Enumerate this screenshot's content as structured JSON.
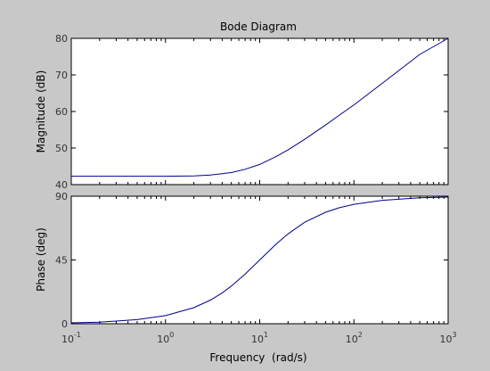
{
  "chart_data": {
    "type": "line",
    "title": "Bode Diagram",
    "xlabel": "Frequency  (rad/s)",
    "x_scale": "log",
    "xlim": [
      0.1,
      1000
    ],
    "x_ticks": [
      {
        "value": 0.1,
        "base": "10",
        "exp": "-1"
      },
      {
        "value": 1,
        "base": "10",
        "exp": "0"
      },
      {
        "value": 10,
        "base": "10",
        "exp": "1"
      },
      {
        "value": 100,
        "base": "10",
        "exp": "2"
      },
      {
        "value": 1000,
        "base": "10",
        "exp": "3"
      }
    ],
    "line_color": "#00008b",
    "grid": false,
    "panels": [
      {
        "name": "magnitude",
        "ylabel": "Magnitude (dB)",
        "ylim": [
          40,
          80
        ],
        "y_ticks": [
          "40",
          "50",
          "60",
          "70",
          "80"
        ],
        "series": [
          {
            "x": [
              0.1,
              0.2,
              0.5,
              1,
              2,
              3,
              4,
              5,
              7,
              10,
              15,
              20,
              30,
              50,
              70,
              100,
              200,
              500,
              1000
            ],
            "y": [
              42.3,
              42.3,
              42.3,
              42.3,
              42.4,
              42.6,
              43.0,
              43.3,
              44.2,
              45.5,
              47.7,
              49.5,
              52.4,
              56.3,
              59.0,
              61.8,
              67.7,
              75.6,
              81.6
            ]
          }
        ]
      },
      {
        "name": "phase",
        "ylabel": "Phase (deg)",
        "ylim": [
          0,
          90
        ],
        "y_ticks": [
          "0",
          "45",
          "90"
        ],
        "series": [
          {
            "x": [
              0.1,
              0.2,
              0.5,
              1,
              2,
              3,
              4,
              5,
              7,
              10,
              15,
              20,
              30,
              50,
              70,
              100,
              200,
              500,
              1000
            ],
            "y": [
              0.6,
              1.1,
              2.9,
              5.7,
              11.3,
              16.7,
              21.8,
              26.6,
              35.0,
              45.0,
              56.3,
              63.4,
              71.6,
              78.7,
              81.9,
              84.3,
              87.1,
              88.9,
              89.4
            ]
          }
        ]
      }
    ]
  }
}
